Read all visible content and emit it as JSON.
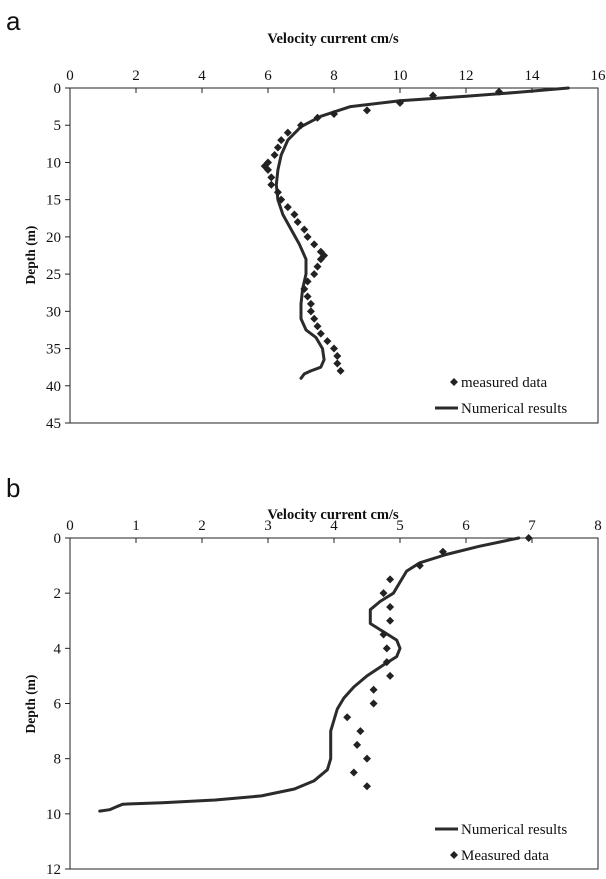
{
  "chart_data": [
    {
      "panel_label": "a",
      "type": "scatter",
      "title": "Velocity current cm/s",
      "xlabel": "",
      "ylabel": "Depth (m)",
      "xlim": [
        0,
        16
      ],
      "ylim": [
        0,
        45
      ],
      "y_inverted": true,
      "x_axis_position": "top",
      "x_ticks": [
        0,
        2,
        4,
        6,
        8,
        10,
        12,
        14,
        16
      ],
      "y_ticks": [
        0,
        5,
        10,
        15,
        20,
        25,
        30,
        35,
        40,
        45
      ],
      "grid": false,
      "legend_position": "bottom-right",
      "series": [
        {
          "name": "measured data",
          "kind": "markers",
          "marker": "diamond",
          "points": [
            [
              13,
              0.5
            ],
            [
              11,
              1
            ],
            [
              10,
              2
            ],
            [
              9,
              3
            ],
            [
              8,
              3.5
            ],
            [
              7.5,
              4
            ],
            [
              7,
              5
            ],
            [
              6.6,
              6
            ],
            [
              6.4,
              7
            ],
            [
              6.3,
              8
            ],
            [
              6.2,
              9
            ],
            [
              6.0,
              10
            ],
            [
              5.9,
              10.5
            ],
            [
              6.0,
              11
            ],
            [
              6.1,
              12
            ],
            [
              6.1,
              13
            ],
            [
              6.3,
              14
            ],
            [
              6.4,
              15
            ],
            [
              6.6,
              16
            ],
            [
              6.8,
              17
            ],
            [
              6.9,
              18
            ],
            [
              7.1,
              19
            ],
            [
              7.2,
              20
            ],
            [
              7.4,
              21
            ],
            [
              7.6,
              22
            ],
            [
              7.7,
              22.5
            ],
            [
              7.6,
              23
            ],
            [
              7.5,
              24
            ],
            [
              7.4,
              25
            ],
            [
              7.2,
              26
            ],
            [
              7.1,
              27
            ],
            [
              7.2,
              28
            ],
            [
              7.3,
              29
            ],
            [
              7.3,
              30
            ],
            [
              7.4,
              31
            ],
            [
              7.5,
              32
            ],
            [
              7.6,
              33
            ],
            [
              7.8,
              34
            ],
            [
              8.0,
              35
            ],
            [
              8.1,
              36
            ],
            [
              8.1,
              37
            ],
            [
              8.2,
              38
            ]
          ]
        },
        {
          "name": "Numerical results",
          "kind": "line",
          "points": [
            [
              15.1,
              0
            ],
            [
              13.5,
              0.6
            ],
            [
              12,
              1.1
            ],
            [
              10,
              1.7
            ],
            [
              8.5,
              2.5
            ],
            [
              7.6,
              3.8
            ],
            [
              7.0,
              5.2
            ],
            [
              6.6,
              7
            ],
            [
              6.4,
              9
            ],
            [
              6.3,
              11
            ],
            [
              6.25,
              13
            ],
            [
              6.3,
              15
            ],
            [
              6.45,
              17
            ],
            [
              6.7,
              19
            ],
            [
              6.95,
              21
            ],
            [
              7.15,
              23
            ],
            [
              7.15,
              25
            ],
            [
              7.05,
              27
            ],
            [
              7.0,
              29
            ],
            [
              7.0,
              31
            ],
            [
              7.15,
              32.5
            ],
            [
              7.45,
              33.5
            ],
            [
              7.65,
              35
            ],
            [
              7.7,
              36.5
            ],
            [
              7.6,
              37.5
            ],
            [
              7.3,
              38
            ],
            [
              7.1,
              38.4
            ],
            [
              7.0,
              39
            ]
          ]
        }
      ]
    },
    {
      "panel_label": "b",
      "type": "scatter",
      "title": "Velocity current cm/s",
      "xlabel": "",
      "ylabel": "Depth (m)",
      "xlim": [
        0,
        8
      ],
      "ylim": [
        0,
        12
      ],
      "y_inverted": true,
      "x_axis_position": "top",
      "x_ticks": [
        0,
        1,
        2,
        3,
        4,
        5,
        6,
        7,
        8
      ],
      "y_ticks": [
        0,
        2,
        4,
        6,
        8,
        10,
        12
      ],
      "grid": false,
      "legend_position": "bottom-right",
      "series": [
        {
          "name": "Numerical results",
          "kind": "line",
          "points": [
            [
              6.8,
              0
            ],
            [
              6.2,
              0.3
            ],
            [
              5.7,
              0.6
            ],
            [
              5.3,
              0.9
            ],
            [
              5.1,
              1.2
            ],
            [
              5.0,
              1.6
            ],
            [
              4.9,
              2.0
            ],
            [
              4.7,
              2.3
            ],
            [
              4.55,
              2.6
            ],
            [
              4.55,
              3.1
            ],
            [
              4.75,
              3.4
            ],
            [
              4.95,
              3.7
            ],
            [
              5.0,
              4.0
            ],
            [
              4.95,
              4.3
            ],
            [
              4.75,
              4.6
            ],
            [
              4.5,
              5.0
            ],
            [
              4.3,
              5.4
            ],
            [
              4.15,
              5.8
            ],
            [
              4.05,
              6.2
            ],
            [
              4.0,
              6.6
            ],
            [
              3.95,
              7.0
            ],
            [
              3.95,
              7.5
            ],
            [
              3.95,
              8.0
            ],
            [
              3.9,
              8.4
            ],
            [
              3.7,
              8.8
            ],
            [
              3.4,
              9.1
            ],
            [
              2.9,
              9.35
            ],
            [
              2.2,
              9.5
            ],
            [
              1.4,
              9.6
            ],
            [
              0.8,
              9.65
            ],
            [
              0.7,
              9.75
            ],
            [
              0.6,
              9.85
            ],
            [
              0.45,
              9.9
            ]
          ]
        },
        {
          "name": "Measured data",
          "kind": "markers",
          "marker": "diamond",
          "points": [
            [
              6.95,
              0
            ],
            [
              5.65,
              0.5
            ],
            [
              5.3,
              1.0
            ],
            [
              4.85,
              1.5
            ],
            [
              4.75,
              2.0
            ],
            [
              4.85,
              2.5
            ],
            [
              4.85,
              3.0
            ],
            [
              4.75,
              3.5
            ],
            [
              4.8,
              4.0
            ],
            [
              4.8,
              4.5
            ],
            [
              4.85,
              5.0
            ],
            [
              4.6,
              5.5
            ],
            [
              4.6,
              6.0
            ],
            [
              4.2,
              6.5
            ],
            [
              4.4,
              7.0
            ],
            [
              4.35,
              7.5
            ],
            [
              4.5,
              8.0
            ],
            [
              4.3,
              8.5
            ],
            [
              4.5,
              9.0
            ]
          ]
        }
      ]
    }
  ]
}
